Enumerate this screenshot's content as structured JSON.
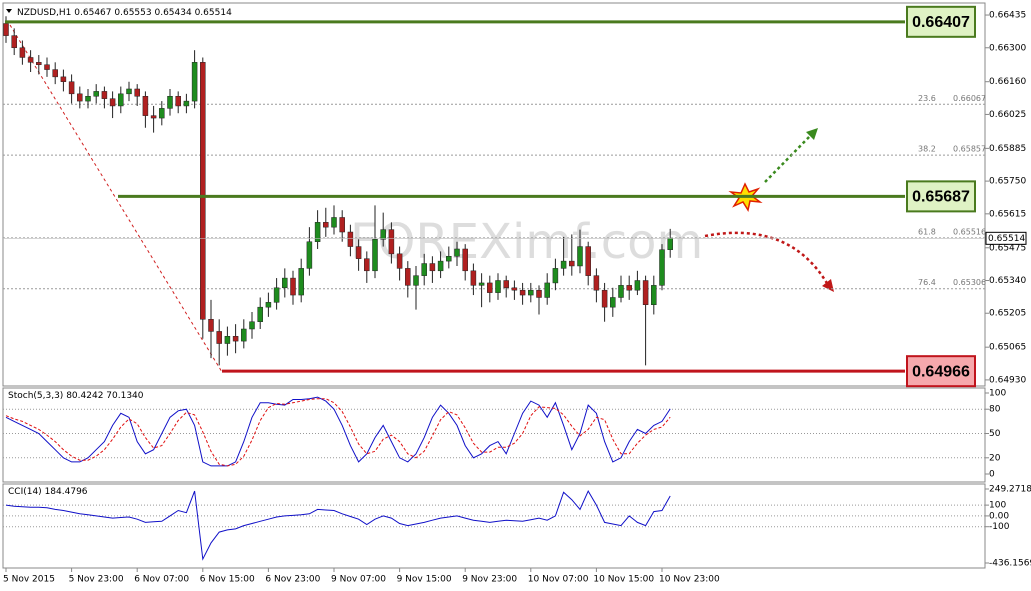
{
  "chart_data": [
    {
      "type": "candlestick",
      "symbol": "NZDUSD,H1",
      "watermark": "FOREXimf.com",
      "categories": [
        "5 Nov 2015",
        null,
        null,
        null,
        null,
        null,
        null,
        null,
        "5 Nov 23:00",
        null,
        null,
        null,
        null,
        null,
        null,
        null,
        "6 Nov 07:00",
        null,
        null,
        null,
        null,
        null,
        null,
        null,
        "6 Nov 15:00",
        null,
        null,
        null,
        null,
        null,
        null,
        null,
        "6 Nov 23:00",
        null,
        null,
        null,
        null,
        null,
        null,
        null,
        "9 Nov 07:00",
        null,
        null,
        null,
        null,
        null,
        null,
        null,
        "9 Nov 15:00",
        null,
        null,
        null,
        null,
        null,
        null,
        null,
        "9 Nov 23:00",
        null,
        null,
        null,
        null,
        null,
        null,
        null,
        "10 Nov 07:00",
        null,
        null,
        null,
        null,
        null,
        null,
        null,
        "10 Nov 15:00",
        null,
        null,
        null,
        null,
        null,
        null,
        null,
        "10 Nov 23:00",
        null
      ],
      "open": [
        0.664,
        0.6635,
        0.663,
        0.6626,
        0.6624,
        0.6623,
        0.6621,
        0.6618,
        0.6616,
        0.6611,
        0.6608,
        0.661,
        0.6612,
        0.6609,
        0.6606,
        0.6611,
        0.6613,
        0.661,
        0.6602,
        0.6601,
        0.6605,
        0.661,
        0.6606,
        0.6608,
        0.6624,
        0.6518,
        0.6513,
        0.6508,
        0.6511,
        0.6509,
        0.6514,
        0.6517,
        0.6523,
        0.6525,
        0.6531,
        0.6535,
        0.6528,
        0.6539,
        0.655,
        0.6558,
        0.6556,
        0.656,
        0.6554,
        0.6548,
        0.6543,
        0.6538,
        0.6551,
        0.6555,
        0.6545,
        0.6539,
        0.6532,
        0.6536,
        0.6541,
        0.6538,
        0.6542,
        0.6544,
        0.6547,
        0.6538,
        0.6532,
        0.6533,
        0.6529,
        0.6534,
        0.6531,
        0.653,
        0.6528,
        0.653,
        0.6527,
        0.6533,
        0.6539,
        0.6542,
        0.654,
        0.6548,
        0.6536,
        0.653,
        0.6523,
        0.6527,
        0.6532,
        0.653,
        0.6534,
        0.6524,
        0.6532,
        0.65467
      ],
      "high": [
        0.6643,
        0.6638,
        0.6633,
        0.6629,
        0.6627,
        0.6626,
        0.6624,
        0.6621,
        0.6619,
        0.6614,
        0.6613,
        0.6615,
        0.6614,
        0.6612,
        0.6614,
        0.6616,
        0.6615,
        0.6612,
        0.6606,
        0.6608,
        0.6613,
        0.6612,
        0.6611,
        0.6629,
        0.6626,
        0.6526,
        0.6518,
        0.6515,
        0.6516,
        0.6518,
        0.6521,
        0.6527,
        0.6529,
        0.6535,
        0.6539,
        0.6538,
        0.6543,
        0.6556,
        0.6563,
        0.6564,
        0.6565,
        0.6563,
        0.6557,
        0.6551,
        0.6546,
        0.6565,
        0.6562,
        0.6558,
        0.6548,
        0.6542,
        0.654,
        0.6545,
        0.6544,
        0.6546,
        0.6548,
        0.655,
        0.6549,
        0.6541,
        0.6537,
        0.6536,
        0.6537,
        0.6536,
        0.6534,
        0.6533,
        0.6533,
        0.6532,
        0.6537,
        0.6543,
        0.6552,
        0.6553,
        0.6555,
        0.655,
        0.6539,
        0.6533,
        0.6531,
        0.6536,
        0.6536,
        0.6538,
        0.6536,
        0.6536,
        0.6549,
        0.65553
      ],
      "low": [
        0.6632,
        0.6627,
        0.6623,
        0.662,
        0.6619,
        0.6618,
        0.6615,
        0.6612,
        0.6607,
        0.6605,
        0.6605,
        0.6607,
        0.6605,
        0.6601,
        0.6603,
        0.6608,
        0.6606,
        0.6597,
        0.6595,
        0.6598,
        0.6602,
        0.6603,
        0.6603,
        0.6605,
        0.651,
        0.6502,
        0.6499,
        0.6503,
        0.6504,
        0.6506,
        0.651,
        0.6514,
        0.6519,
        0.6522,
        0.6527,
        0.6524,
        0.6525,
        0.6536,
        0.6547,
        0.6552,
        0.6553,
        0.655,
        0.6544,
        0.6538,
        0.6533,
        0.6535,
        0.6548,
        0.6541,
        0.6534,
        0.6527,
        0.6522,
        0.6532,
        0.6533,
        0.6535,
        0.6539,
        0.654,
        0.6534,
        0.6528,
        0.6523,
        0.6525,
        0.6526,
        0.6527,
        0.6526,
        0.6524,
        0.6525,
        0.652,
        0.6524,
        0.653,
        0.6536,
        0.6536,
        0.6537,
        0.6532,
        0.6525,
        0.6517,
        0.6519,
        0.6525,
        0.6526,
        0.6528,
        0.6499,
        0.652,
        0.653,
        0.65434
      ],
      "close": [
        0.6635,
        0.663,
        0.6626,
        0.6624,
        0.6623,
        0.6621,
        0.6618,
        0.6616,
        0.6611,
        0.6608,
        0.661,
        0.6612,
        0.6609,
        0.6606,
        0.6611,
        0.6613,
        0.661,
        0.6602,
        0.6601,
        0.6605,
        0.661,
        0.6606,
        0.6608,
        0.6624,
        0.6518,
        0.6513,
        0.6508,
        0.6511,
        0.6509,
        0.6514,
        0.6517,
        0.6523,
        0.6525,
        0.6531,
        0.6535,
        0.6528,
        0.6539,
        0.655,
        0.6558,
        0.6556,
        0.656,
        0.6554,
        0.6548,
        0.6543,
        0.6538,
        0.6551,
        0.6555,
        0.6545,
        0.6539,
        0.6532,
        0.6536,
        0.6541,
        0.6538,
        0.6542,
        0.6544,
        0.6547,
        0.6538,
        0.6532,
        0.6533,
        0.6529,
        0.6534,
        0.6531,
        0.653,
        0.6528,
        0.653,
        0.6527,
        0.6533,
        0.6539,
        0.6542,
        0.654,
        0.6548,
        0.6536,
        0.653,
        0.6523,
        0.6527,
        0.6532,
        0.653,
        0.6534,
        0.6524,
        0.6532,
        0.65467,
        0.65514
      ],
      "up_color": "#1e8c1e",
      "down_color": "#b02020",
      "ylim": [
        0.64909,
        0.66464
      ],
      "yticks": [
        {
          "value": 0.66435,
          "label": "0.66435"
        },
        {
          "value": 0.663,
          "label": "0.66300"
        },
        {
          "value": 0.6616,
          "label": "0.66160"
        },
        {
          "value": 0.66025,
          "label": "0.66025"
        },
        {
          "value": 0.65885,
          "label": "0.65885"
        },
        {
          "value": 0.6575,
          "label": "0.65750"
        },
        {
          "value": 0.65615,
          "label": "0.65615"
        },
        {
          "value": 0.65475,
          "label": "0.65475"
        },
        {
          "value": 0.6534,
          "label": "0.65340"
        },
        {
          "value": 0.65205,
          "label": "0.65205"
        },
        {
          "value": 0.65065,
          "label": "0.65065"
        },
        {
          "value": 0.6493,
          "label": "0.64930"
        }
      ],
      "levels": [
        {
          "value": 0.66407,
          "color": "#4a7a1e",
          "fill": "#dff2c4"
        },
        {
          "value": 0.65687,
          "color": "#4a7a1e",
          "fill": "#dff2c4"
        },
        {
          "value": 0.64966,
          "color": "#c0141c",
          "fill": "#f6a8ac"
        }
      ],
      "fib_levels": [
        {
          "ratio": "23.6",
          "value": 0.66067
        },
        {
          "ratio": "38.2",
          "value": 0.65857
        },
        {
          "ratio": "61.8",
          "value": 0.65516
        },
        {
          "ratio": "76.4",
          "value": 0.65306
        }
      ]
    },
    {
      "type": "line",
      "title": "Stoch(5,3,3)",
      "readout": [
        "80.4242",
        "70.1340"
      ],
      "series": [
        {
          "color": "#1010c8",
          "values": [
            70,
            65,
            60,
            55,
            50,
            40,
            30,
            20,
            15,
            15,
            20,
            30,
            40,
            60,
            75,
            70,
            40,
            25,
            30,
            50,
            70,
            78,
            80,
            60,
            15,
            10,
            10,
            10,
            15,
            40,
            70,
            88,
            88,
            86,
            85,
            92,
            92,
            93,
            95,
            90,
            80,
            60,
            35,
            15,
            25,
            45,
            60,
            40,
            20,
            15,
            25,
            45,
            70,
            85,
            75,
            60,
            35,
            20,
            25,
            35,
            40,
            25,
            50,
            75,
            90,
            85,
            70,
            88,
            60,
            30,
            50,
            85,
            75,
            40,
            15,
            20,
            40,
            55,
            50,
            60,
            65,
            80.4242
          ]
        },
        {
          "color": "#e01010",
          "dashed": true,
          "values": [
            72,
            68,
            65,
            60,
            55,
            48,
            40,
            30,
            22,
            17,
            17,
            22,
            30,
            43,
            58,
            68,
            62,
            45,
            32,
            35,
            50,
            66,
            76,
            73,
            52,
            28,
            12,
            10,
            12,
            22,
            42,
            66,
            82,
            87,
            86,
            88,
            90,
            92,
            93,
            93,
            88,
            77,
            58,
            37,
            25,
            28,
            43,
            48,
            40,
            25,
            20,
            28,
            47,
            67,
            77,
            73,
            57,
            38,
            27,
            27,
            33,
            33,
            38,
            50,
            72,
            83,
            82,
            81,
            73,
            59,
            47,
            55,
            70,
            67,
            43,
            25,
            25,
            38,
            48,
            55,
            58,
            70.134
          ]
        }
      ],
      "ylim": [
        0,
        100
      ],
      "yticks": [
        100,
        80,
        50,
        20,
        0
      ],
      "grid": true
    },
    {
      "type": "line",
      "title": "CCI(14)",
      "readout": [
        "184.4796"
      ],
      "series": [
        {
          "color": "#1010c8",
          "values": [
            100,
            90,
            85,
            80,
            80,
            75,
            60,
            50,
            35,
            20,
            10,
            0,
            -10,
            -20,
            -15,
            -10,
            -30,
            -60,
            -55,
            -50,
            0,
            50,
            30,
            230,
            -400,
            -250,
            -150,
            -130,
            -120,
            -90,
            -70,
            -50,
            -30,
            -10,
            0,
            5,
            10,
            20,
            60,
            55,
            50,
            20,
            -5,
            -30,
            -80,
            -30,
            0,
            -20,
            -70,
            -90,
            -75,
            -60,
            -40,
            -20,
            -10,
            0,
            -20,
            -40,
            -50,
            -60,
            -50,
            -40,
            -45,
            -50,
            -35,
            -20,
            -40,
            0,
            220,
            150,
            60,
            230,
            100,
            -60,
            -75,
            -90,
            0,
            -60,
            -90,
            40,
            50,
            184.4796
          ]
        }
      ],
      "ylim": [
        -436.1569,
        249.2718
      ],
      "yticks": [
        249.2718,
        100,
        {
          "value": 0,
          "label": "0.00"
        },
        -100,
        -436.1569
      ],
      "grid": true
    }
  ]
}
